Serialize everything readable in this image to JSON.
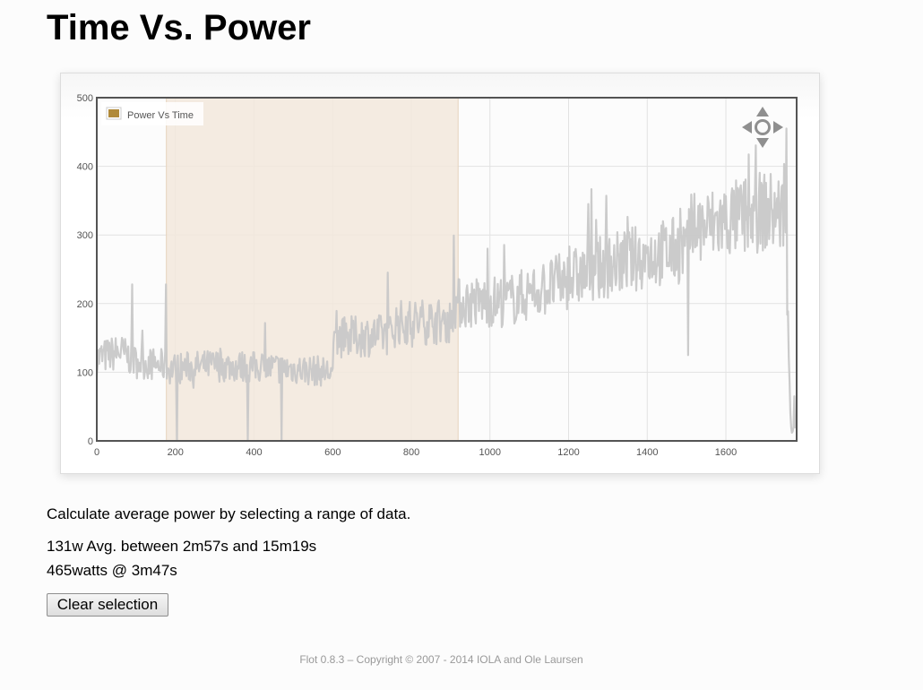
{
  "page": {
    "title": "Time Vs. Power",
    "instructions": "Calculate average power by selecting a range of data.",
    "avg_result": "131w Avg. between 2m57s and 15m19s",
    "peak_result": "465watts @ 3m47s",
    "clear_button_label": "Clear selection",
    "footer": "Flot 0.8.3 – Copyright © 2007 - 2014 IOLA and Ole Laursen"
  },
  "colors": {
    "series": "#c8c8c8",
    "legend_swatch": "#b08a3a",
    "selection": "#f2e8dc",
    "grid": "#e2e2e2",
    "axis_text": "#545454"
  },
  "chart_data": {
    "type": "line",
    "title": "",
    "xlabel": "",
    "ylabel": "",
    "xlim": [
      0,
      1780
    ],
    "ylim": [
      0,
      500
    ],
    "x_ticks": [
      0,
      200,
      400,
      600,
      800,
      1000,
      1200,
      1400,
      1600
    ],
    "y_ticks": [
      0,
      100,
      200,
      300,
      400,
      500
    ],
    "grid": true,
    "legend_position": "top-left",
    "navigation_control": "pan-arrows-icon",
    "selection_range": [
      177,
      919
    ],
    "series": [
      {
        "name": "Power Vs Time",
        "baseline_points": [
          [
            0,
            120
          ],
          [
            60,
            130
          ],
          [
            100,
            115
          ],
          [
            170,
            110
          ],
          [
            180,
            105
          ],
          [
            300,
            110
          ],
          [
            500,
            105
          ],
          [
            600,
            100
          ],
          [
            605,
            150
          ],
          [
            750,
            155
          ],
          [
            760,
            172
          ],
          [
            900,
            175
          ],
          [
            910,
            200
          ],
          [
            1050,
            205
          ],
          [
            1100,
            215
          ],
          [
            1200,
            235
          ],
          [
            1300,
            255
          ],
          [
            1400,
            270
          ],
          [
            1500,
            280
          ],
          [
            1510,
            305
          ],
          [
            1600,
            320
          ],
          [
            1700,
            335
          ],
          [
            1750,
            330
          ],
          [
            1765,
            20
          ],
          [
            1778,
            25
          ]
        ],
        "notable_points": [
          [
            90,
            228
          ],
          [
            177,
            228
          ],
          [
            205,
            0
          ],
          [
            385,
            0
          ],
          [
            470,
            0
          ],
          [
            1250,
            345
          ],
          [
            1505,
            125
          ],
          [
            1520,
            360
          ],
          [
            1755,
            455
          ],
          [
            1775,
            65
          ]
        ]
      }
    ]
  }
}
